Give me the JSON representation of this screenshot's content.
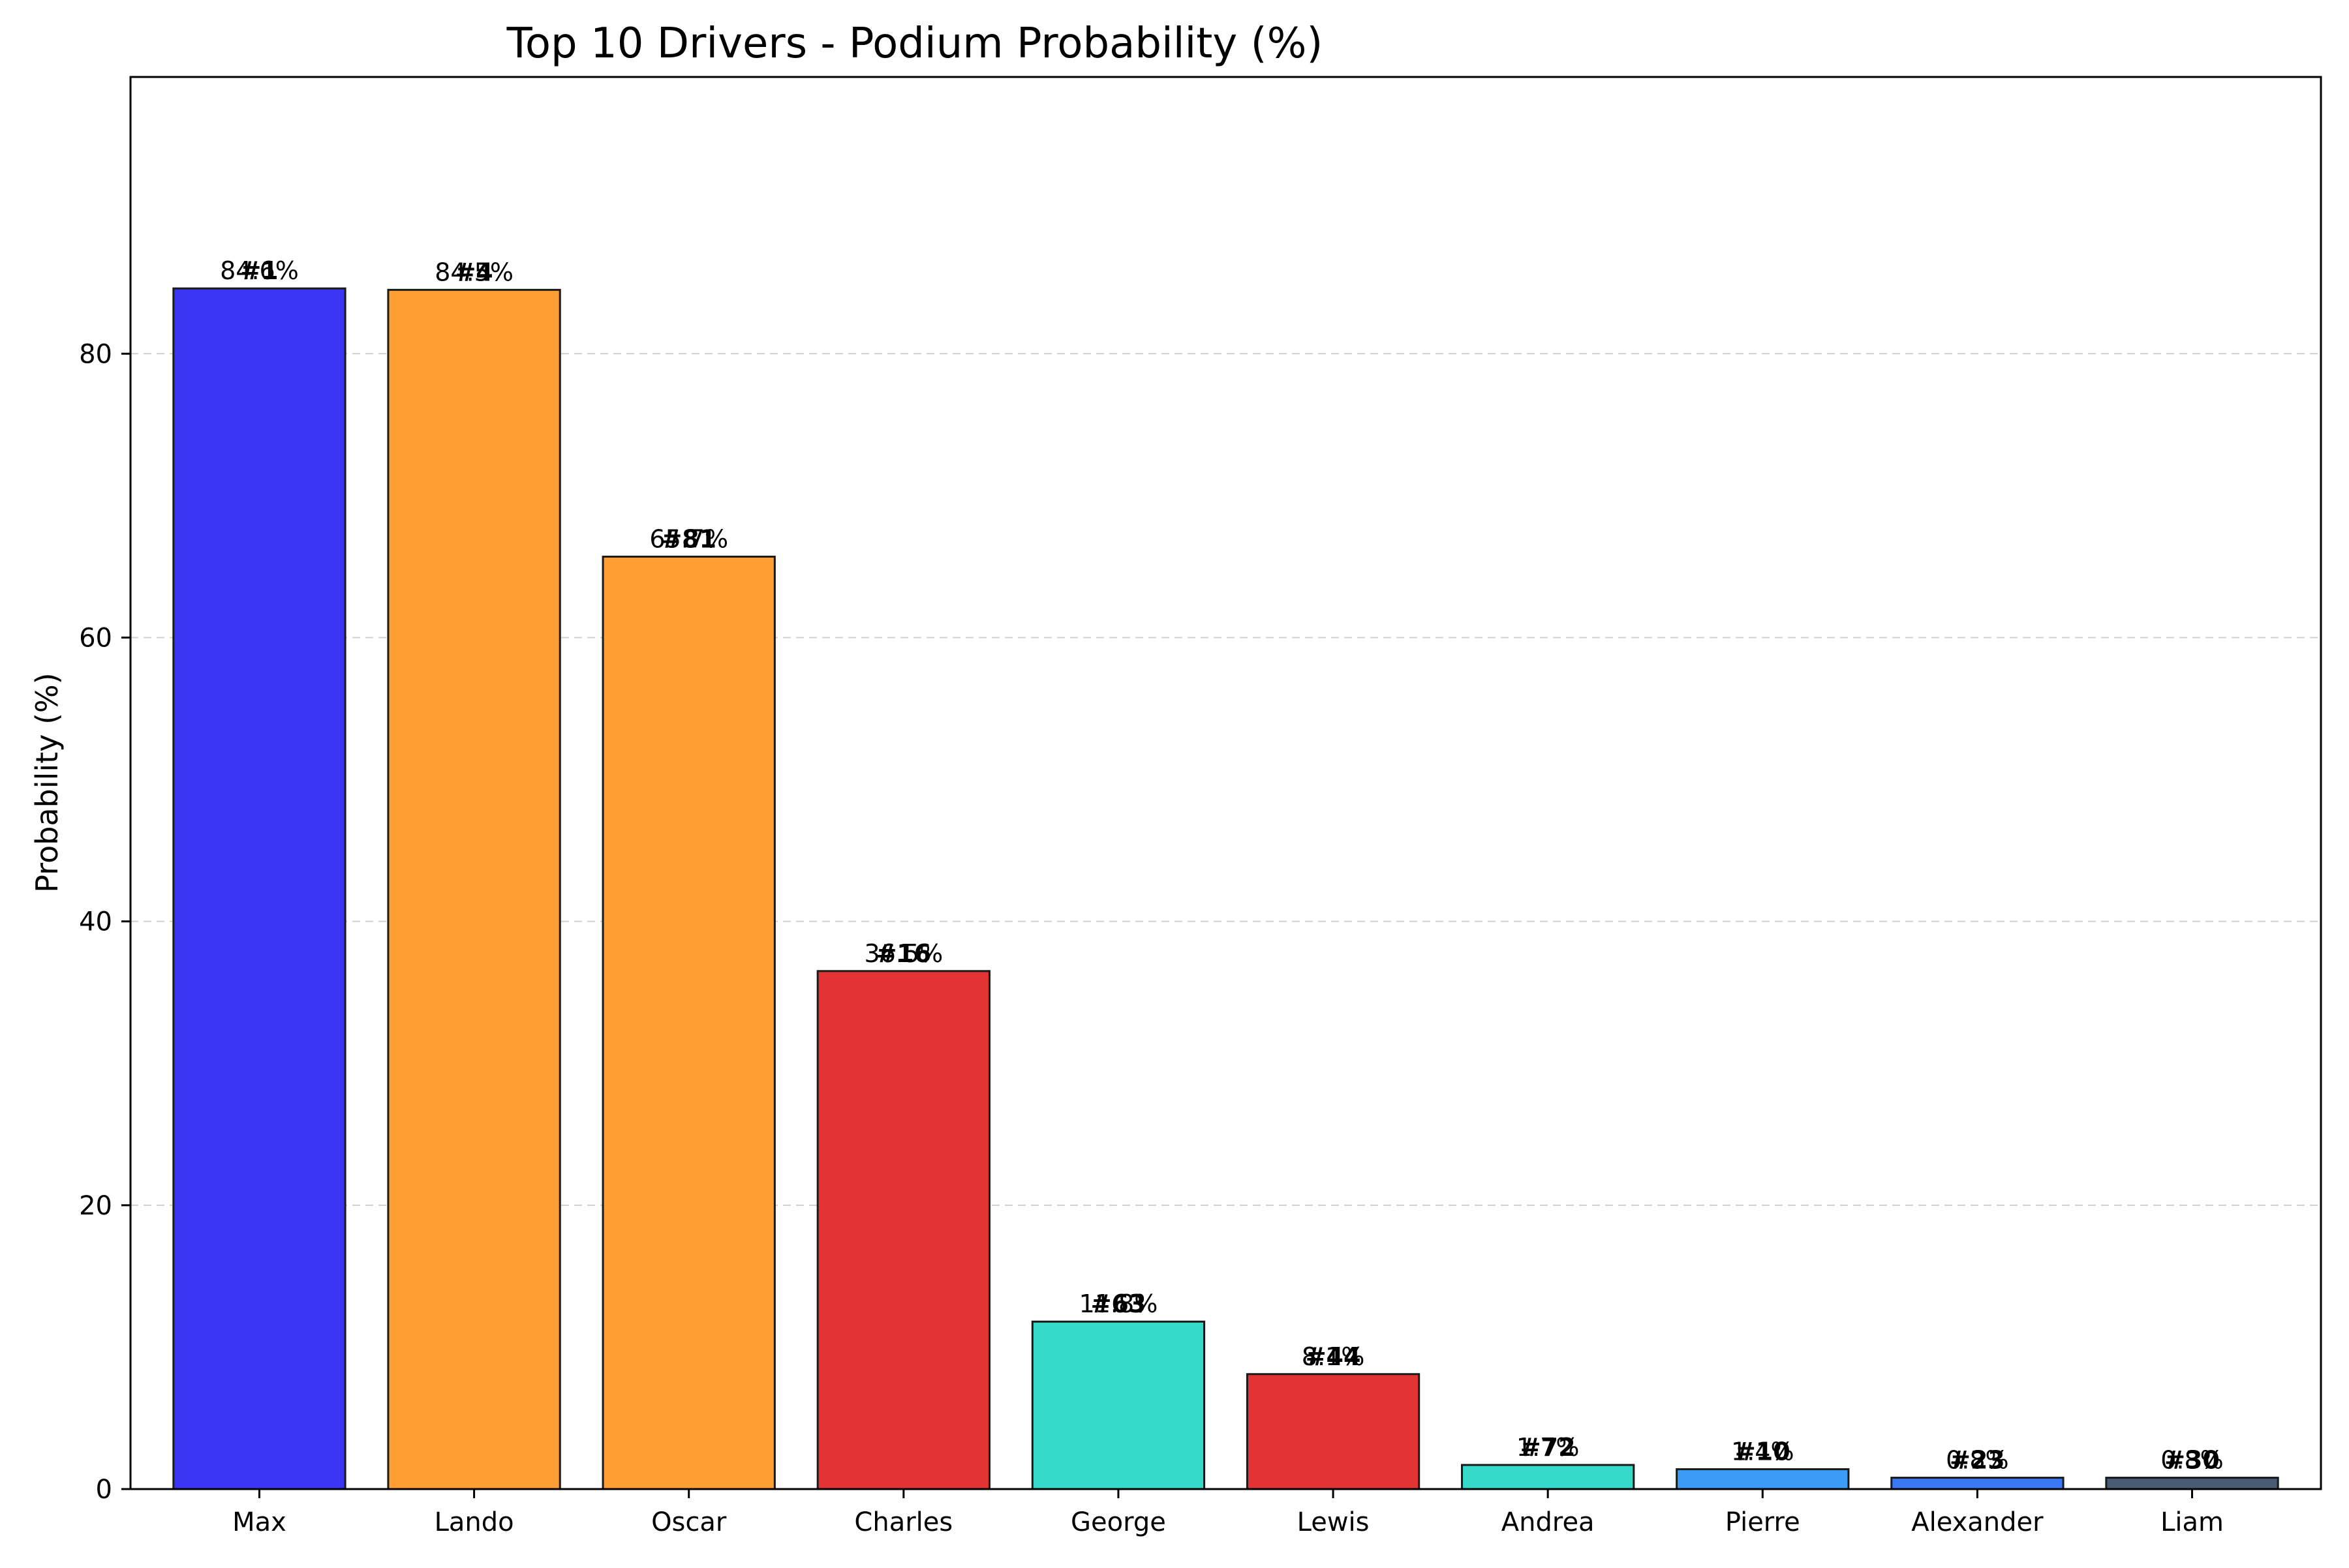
{
  "chart_data": {
    "type": "bar",
    "title": "Top 10 Drivers - Podium Probability (%)",
    "xlabel": "",
    "ylabel": "Probability (%)",
    "ylim": [
      0,
      99.5
    ],
    "yticks": [
      0,
      20,
      40,
      60,
      80
    ],
    "grid": "y-dashed",
    "categories": [
      "Max",
      "Lando",
      "Oscar",
      "Charles",
      "George",
      "Lewis",
      "Andrea",
      "Pierre",
      "Alexander",
      "Liam"
    ],
    "values": [
      84.6,
      84.5,
      65.7,
      36.5,
      11.8,
      8.1,
      1.7,
      1.4,
      0.8,
      0.8
    ],
    "value_labels": [
      "84.6%",
      "84.5%",
      "65.7%",
      "36.5%",
      "11.8%",
      "8.1%",
      "1.7%",
      "1.4%",
      "0.8%",
      "0.8%"
    ],
    "number_labels": [
      "#1",
      "#4",
      "#81",
      "#16",
      "#63",
      "#44",
      "#72",
      "#10",
      "#23",
      "#30"
    ],
    "colors": [
      "#3A36F4",
      "#FF9E33",
      "#FF9E33",
      "#E23433",
      "#35DAC8",
      "#E23433",
      "#35DAC8",
      "#3A9CF4",
      "#3A78F4",
      "#4A5C74"
    ]
  }
}
